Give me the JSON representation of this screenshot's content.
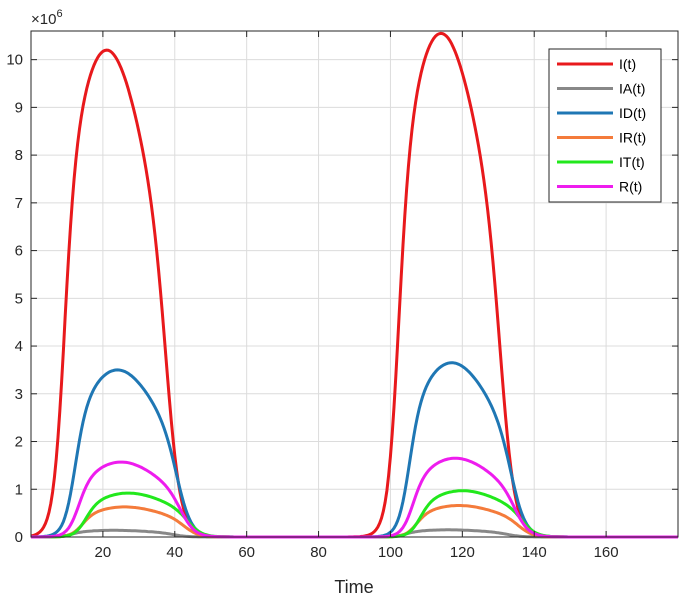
{
  "chart_data": {
    "type": "line",
    "title": "",
    "xlabel": "Time",
    "ylabel": "",
    "exponent_label": {
      "base": "×10",
      "power": "6"
    },
    "xlim": [
      0,
      180
    ],
    "ylim": [
      0,
      10.6
    ],
    "xticks": [
      20,
      40,
      60,
      80,
      100,
      120,
      140,
      160
    ],
    "yticks": [
      0,
      1,
      2,
      3,
      4,
      5,
      6,
      7,
      8,
      9,
      10
    ],
    "grid": true,
    "legend_position": "top-right",
    "series": [
      {
        "name": "I(t)",
        "color": "#e8191c",
        "peaks": [
          {
            "t": 21,
            "value": 10.2
          },
          {
            "t": 114,
            "value": 10.55
          }
        ]
      },
      {
        "name": "IA(t)",
        "color": "#888888",
        "peaks": [
          {
            "t": 23,
            "value": 0.14
          },
          {
            "t": 116,
            "value": 0.15
          }
        ]
      },
      {
        "name": "ID(t)",
        "color": "#1f77b4",
        "peaks": [
          {
            "t": 24,
            "value": 3.5
          },
          {
            "t": 117,
            "value": 3.65
          }
        ]
      },
      {
        "name": "IR(t)",
        "color": "#f47b3b",
        "peaks": [
          {
            "t": 26,
            "value": 0.63
          },
          {
            "t": 119,
            "value": 0.66
          }
        ]
      },
      {
        "name": "IT(t)",
        "color": "#22e81c",
        "peaks": [
          {
            "t": 27,
            "value": 0.92
          },
          {
            "t": 120,
            "value": 0.97
          }
        ]
      },
      {
        "name": "R(t)",
        "color": "#ee1cee",
        "peaks": [
          {
            "t": 25,
            "value": 1.57
          },
          {
            "t": 118,
            "value": 1.65
          }
        ]
      }
    ]
  }
}
